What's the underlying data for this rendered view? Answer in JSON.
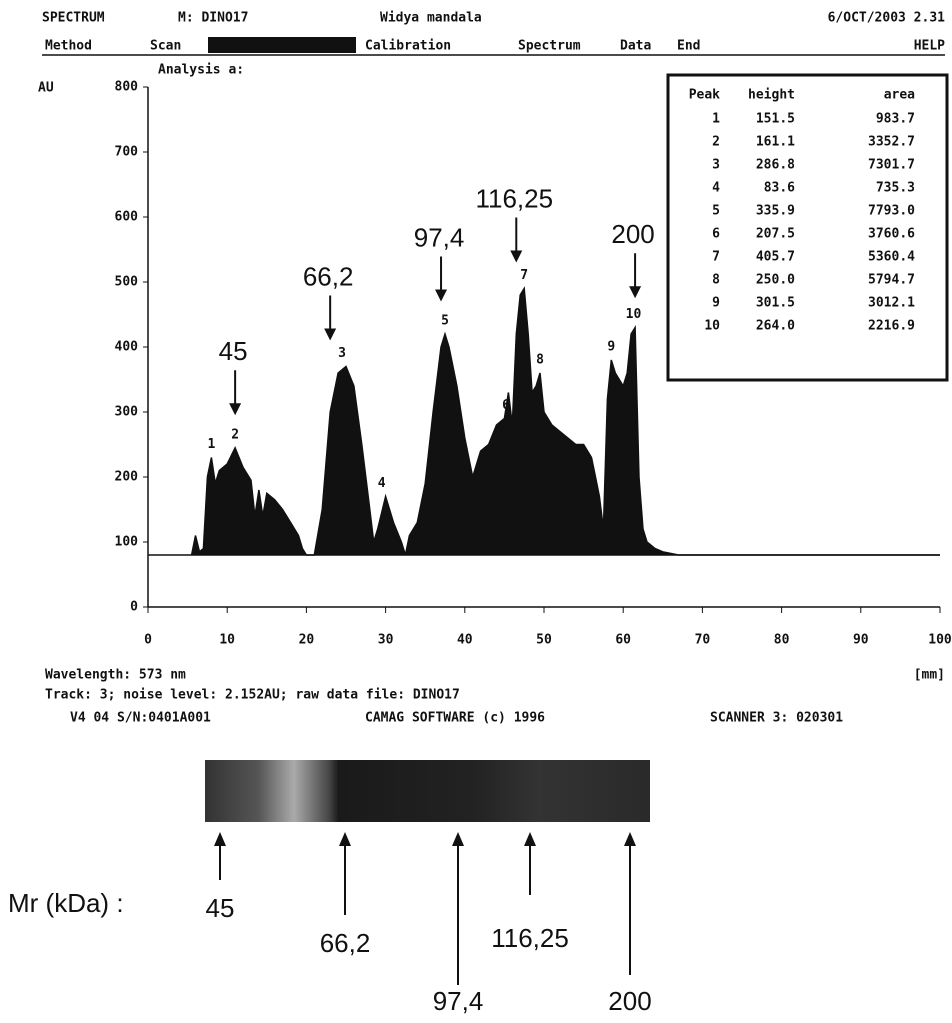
{
  "header": {
    "app": "SPECTRUM",
    "method_file": "M: DINO17",
    "user": "Widya mandala",
    "datetime": "6/OCT/2003  2.31"
  },
  "menu": [
    "Method",
    "Scan",
    "Calibration",
    "Spectrum",
    "Data",
    "End",
    "HELP"
  ],
  "chart_data": {
    "type": "line",
    "y_label": "AU",
    "x_unit": "[mm]",
    "subtitle": "Analysis a:",
    "xlim": [
      0,
      100
    ],
    "xticks": [
      0,
      10,
      20,
      30,
      40,
      50,
      60,
      70,
      80,
      90,
      100
    ],
    "ylim": [
      0,
      800
    ],
    "yticks": [
      0,
      100,
      200,
      300,
      400,
      500,
      600,
      700,
      800
    ],
    "baseline": 80,
    "color": "#111111",
    "x": [
      5.5,
      6,
      6.5,
      7,
      7.5,
      8,
      8.5,
      9,
      10,
      11,
      12,
      13,
      13.5,
      14,
      14.5,
      15,
      16,
      17,
      18,
      19,
      19.5,
      20,
      21,
      22,
      23,
      24,
      25,
      26,
      27,
      28,
      28.5,
      29,
      30,
      31,
      32,
      32.5,
      33,
      34,
      35,
      36,
      37,
      37.5,
      38,
      39,
      40,
      41,
      42,
      43,
      44,
      45,
      45.5,
      46,
      46.5,
      47,
      47.5,
      48,
      48.5,
      49,
      49.5,
      50,
      51,
      52,
      53,
      54,
      55,
      56,
      56.5,
      57,
      57.5,
      58,
      58.5,
      59,
      60,
      60.5,
      61,
      61.5,
      62,
      62.5,
      63,
      64,
      65,
      67,
      100
    ],
    "values": [
      80,
      110,
      85,
      90,
      200,
      230,
      190,
      210,
      220,
      245,
      215,
      195,
      140,
      180,
      140,
      175,
      165,
      150,
      130,
      110,
      90,
      80,
      80,
      150,
      300,
      360,
      370,
      340,
      250,
      150,
      100,
      120,
      170,
      130,
      100,
      80,
      110,
      130,
      190,
      300,
      400,
      420,
      400,
      340,
      260,
      200,
      240,
      250,
      280,
      290,
      330,
      280,
      420,
      480,
      490,
      420,
      330,
      340,
      360,
      300,
      280,
      270,
      260,
      250,
      250,
      230,
      200,
      170,
      120,
      320,
      380,
      360,
      340,
      360,
      420,
      430,
      200,
      120,
      100,
      90,
      85,
      80,
      80
    ],
    "peak_markers": [
      {
        "label": "1",
        "x": 8,
        "y": 250
      },
      {
        "label": "2",
        "x": 11,
        "y": 265
      },
      {
        "label": "3",
        "x": 24.5,
        "y": 390
      },
      {
        "label": "4",
        "x": 29.5,
        "y": 190
      },
      {
        "label": "5",
        "x": 37.5,
        "y": 440
      },
      {
        "label": "6",
        "x": 45.2,
        "y": 310
      },
      {
        "label": "7",
        "x": 47.5,
        "y": 510
      },
      {
        "label": "8",
        "x": 49.5,
        "y": 380
      },
      {
        "label": "9",
        "x": 58.5,
        "y": 400
      },
      {
        "label": "10",
        "x": 61.3,
        "y": 450
      }
    ],
    "annotations": [
      {
        "text": "45",
        "x": 11,
        "y": 295
      },
      {
        "text": "66,2",
        "x": 23,
        "y": 410
      },
      {
        "text": "97,4",
        "x": 37,
        "y": 470
      },
      {
        "text": "116,25",
        "x": 46.5,
        "y": 530
      },
      {
        "text": "200",
        "x": 61.5,
        "y": 475
      }
    ]
  },
  "table": {
    "columns": [
      "Peak",
      "height",
      "area"
    ],
    "rows": [
      [
        "1",
        "151.5",
        "983.7"
      ],
      [
        "2",
        "161.1",
        "3352.7"
      ],
      [
        "3",
        "286.8",
        "7301.7"
      ],
      [
        "4",
        "83.6",
        "735.3"
      ],
      [
        "5",
        "335.9",
        "7793.0"
      ],
      [
        "6",
        "207.5",
        "3760.6"
      ],
      [
        "7",
        "405.7",
        "5360.4"
      ],
      [
        "8",
        "250.0",
        "5794.7"
      ],
      [
        "9",
        "301.5",
        "3012.1"
      ],
      [
        "10",
        "264.0",
        "2216.9"
      ]
    ]
  },
  "footer": {
    "wavelength": "Wavelength: 573 nm",
    "track": "Track:  3; noise level:   2.152AU; raw data file: DINO17",
    "version": "V4 04 S/N:0401A001",
    "software": "CAMAG SOFTWARE (c) 1996",
    "scanner": "SCANNER 3:  020301"
  },
  "gel": {
    "axis_label": "Mr (kDa) :",
    "markers": [
      "45",
      "66,2",
      "97,4",
      "116,25",
      "200"
    ]
  }
}
